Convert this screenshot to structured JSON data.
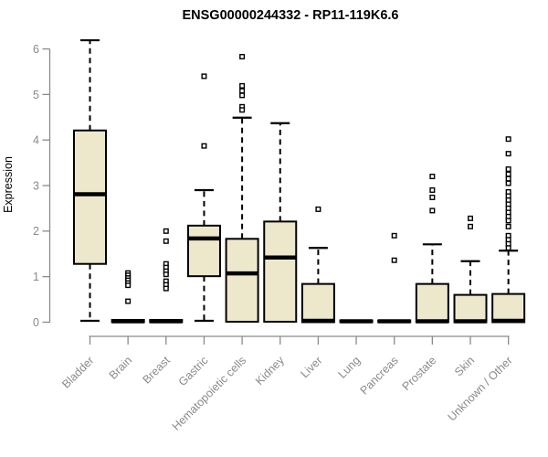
{
  "chart_data": {
    "type": "boxplot",
    "title": "ENSG00000244332 - RP11-119K6.6",
    "ylabel": "Expression",
    "xlabel": "",
    "ylim": [
      0,
      6.3
    ],
    "yticks": [
      0,
      1,
      2,
      3,
      4,
      5,
      6
    ],
    "grid": "off",
    "legend": "none",
    "categories": [
      "Bladder",
      "Brain",
      "Breast",
      "Gastric",
      "Hematopoietic cells",
      "Kidney",
      "Liver",
      "Lung",
      "Pancreas",
      "Prostate",
      "Skin",
      "Unknown / Other"
    ],
    "boxes": [
      {
        "category": "Bladder",
        "whisker_low": 0.03,
        "q1": 1.28,
        "median": 2.81,
        "q3": 4.21,
        "whisker_high": 6.19,
        "outliers": []
      },
      {
        "category": "Brain",
        "whisker_low": 0.0,
        "q1": 0.0,
        "median": 0.02,
        "q3": 0.05,
        "whisker_high": 0.05,
        "outliers": [
          1.08,
          1.03,
          0.97,
          0.92,
          0.86,
          0.81,
          0.46
        ]
      },
      {
        "category": "Breast",
        "whisker_low": 0.0,
        "q1": 0.0,
        "median": 0.02,
        "q3": 0.05,
        "whisker_high": 0.05,
        "outliers": [
          2.0,
          1.78,
          1.28,
          1.2,
          1.12,
          1.05,
          0.9,
          0.82,
          0.74
        ]
      },
      {
        "category": "Gastric",
        "whisker_low": 0.03,
        "q1": 1.01,
        "median": 1.84,
        "q3": 2.12,
        "whisker_high": 2.9,
        "outliers": [
          5.4,
          3.87
        ]
      },
      {
        "category": "Hematopoietic cells",
        "whisker_low": 0.0,
        "q1": 0.01,
        "median": 1.07,
        "q3": 1.83,
        "whisker_high": 4.49,
        "outliers": [
          5.83,
          5.19,
          5.08,
          4.98,
          4.73,
          4.66
        ]
      },
      {
        "category": "Kidney",
        "whisker_low": 0.0,
        "q1": 0.01,
        "median": 1.42,
        "q3": 2.21,
        "whisker_high": 4.37,
        "outliers": []
      },
      {
        "category": "Liver",
        "whisker_low": 0.0,
        "q1": 0.0,
        "median": 0.03,
        "q3": 0.84,
        "whisker_high": 1.63,
        "outliers": [
          2.48
        ]
      },
      {
        "category": "Lung",
        "whisker_low": 0.0,
        "q1": 0.0,
        "median": 0.02,
        "q3": 0.04,
        "whisker_high": 0.04,
        "outliers": []
      },
      {
        "category": "Pancreas",
        "whisker_low": 0.0,
        "q1": 0.0,
        "median": 0.02,
        "q3": 0.04,
        "whisker_high": 0.04,
        "outliers": [
          1.9,
          1.36
        ]
      },
      {
        "category": "Prostate",
        "whisker_low": 0.0,
        "q1": 0.0,
        "median": 0.02,
        "q3": 0.84,
        "whisker_high": 1.71,
        "outliers": [
          3.2,
          2.9,
          2.74,
          2.45
        ]
      },
      {
        "category": "Skin",
        "whisker_low": 0.0,
        "q1": 0.0,
        "median": 0.02,
        "q3": 0.6,
        "whisker_high": 1.34,
        "outliers": [
          2.28,
          2.1
        ]
      },
      {
        "category": "Unknown / Other",
        "whisker_low": 0.0,
        "q1": 0.0,
        "median": 0.03,
        "q3": 0.62,
        "whisker_high": 1.57,
        "outliers": [
          4.02,
          3.7,
          3.36,
          3.25,
          3.15,
          3.05,
          2.86,
          2.77,
          2.68,
          2.59,
          2.5,
          2.41,
          2.32,
          2.23,
          2.1,
          1.9,
          1.81,
          1.72,
          1.63
        ]
      }
    ],
    "colors": {
      "box_fill": "#EDE8CC",
      "box_border": "#000000",
      "median": "#000000",
      "whisker": "#000000",
      "outlier_stroke": "#000000",
      "outlier_fill": "#ffffff",
      "axis": "#8a8a8a",
      "title": "#000000",
      "background": "#ffffff"
    }
  }
}
